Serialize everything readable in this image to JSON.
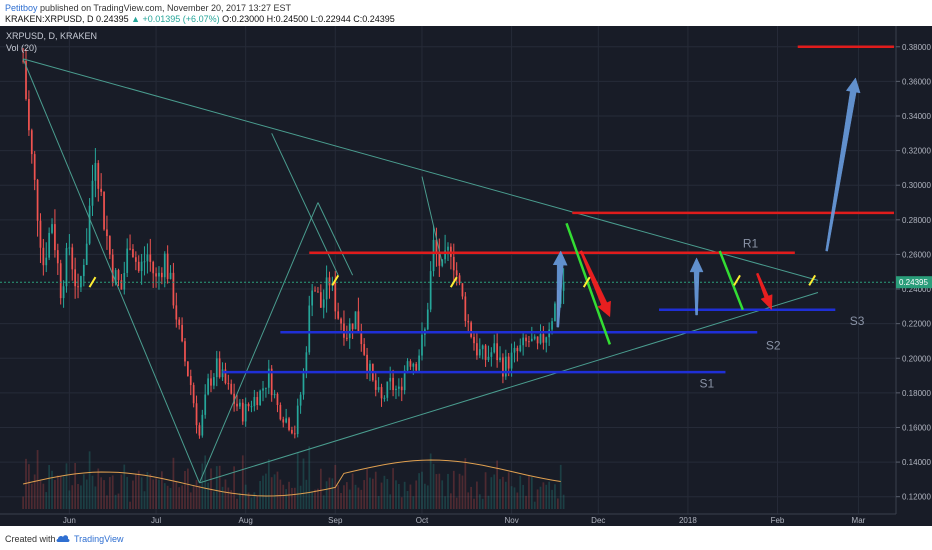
{
  "header": {
    "user": "Petitboy",
    "published_text": "published on TradingView.com, November 20, 2017 13:27 EST",
    "symbol": "KRAKEN:XRPUSD, D",
    "price": "0.24395",
    "change": "▲ +0.01395 (+6.07%)",
    "ohlc": "O:0.23000 H:0.24500 L:0.22944 C:0.24395"
  },
  "legend": {
    "symbol_line": "XRPUSD, D, KRAKEN",
    "vol_line": "Vol (20)"
  },
  "footer": {
    "created_with": "Created with",
    "brand": "TradingView"
  },
  "colors": {
    "background": "#181c27",
    "grid": "#262b38",
    "up_candle": "#26a69a",
    "down_candle": "#ef5350",
    "resistance": "#e01c1c",
    "support": "#1f2fd6",
    "triangle": "#4a9d8f",
    "current_price": "#2a9d7a",
    "arrow_blue": "#6a9de0",
    "arrow_red": "#ff2020",
    "arrow_green": "#33dd33",
    "tick_yellow": "#ffee33"
  },
  "chart_data": {
    "type": "candlestick",
    "title": "XRPUSD, D, KRAKEN",
    "x_ticks": [
      "Jun",
      "Jul",
      "Aug",
      "Sep",
      "Oct",
      "Nov",
      "Dec",
      "2018",
      "Feb",
      "Mar"
    ],
    "y_ticks": [
      "0.12000",
      "0.14000",
      "0.16000",
      "0.18000",
      "0.20000",
      "0.22000",
      "0.24000",
      "0.26000",
      "0.28000",
      "0.30000",
      "0.32000",
      "0.34000",
      "0.36000",
      "0.38000"
    ],
    "ylim": [
      0.11,
      0.392
    ],
    "current_price": 0.24395,
    "current_price_label": "0.24395",
    "price_path": [
      [
        "2017-05-16",
        0.372
      ],
      [
        "2017-05-18",
        0.33
      ],
      [
        "2017-05-20",
        0.3
      ],
      [
        "2017-05-23",
        0.255
      ],
      [
        "2017-05-26",
        0.28
      ],
      [
        "2017-05-29",
        0.24
      ],
      [
        "2017-06-01",
        0.265
      ],
      [
        "2017-06-04",
        0.235
      ],
      [
        "2017-06-07",
        0.27
      ],
      [
        "2017-06-10",
        0.32
      ],
      [
        "2017-06-13",
        0.28
      ],
      [
        "2017-06-16",
        0.25
      ],
      [
        "2017-06-19",
        0.24
      ],
      [
        "2017-06-22",
        0.27
      ],
      [
        "2017-06-25",
        0.25
      ],
      [
        "2017-06-28",
        0.26
      ],
      [
        "2017-07-01",
        0.245
      ],
      [
        "2017-07-04",
        0.258
      ],
      [
        "2017-07-07",
        0.235
      ],
      [
        "2017-07-10",
        0.205
      ],
      [
        "2017-07-13",
        0.185
      ],
      [
        "2017-07-16",
        0.155
      ],
      [
        "2017-07-19",
        0.185
      ],
      [
        "2017-07-22",
        0.195
      ],
      [
        "2017-07-25",
        0.185
      ],
      [
        "2017-07-28",
        0.175
      ],
      [
        "2017-07-31",
        0.168
      ],
      [
        "2017-08-03",
        0.175
      ],
      [
        "2017-08-06",
        0.18
      ],
      [
        "2017-08-09",
        0.19
      ],
      [
        "2017-08-12",
        0.172
      ],
      [
        "2017-08-15",
        0.165
      ],
      [
        "2017-08-18",
        0.158
      ],
      [
        "2017-08-21",
        0.19
      ],
      [
        "2017-08-24",
        0.245
      ],
      [
        "2017-08-27",
        0.23
      ],
      [
        "2017-08-30",
        0.245
      ],
      [
        "2017-09-02",
        0.225
      ],
      [
        "2017-09-05",
        0.215
      ],
      [
        "2017-09-08",
        0.225
      ],
      [
        "2017-09-11",
        0.205
      ],
      [
        "2017-09-14",
        0.185
      ],
      [
        "2017-09-17",
        0.175
      ],
      [
        "2017-09-20",
        0.185
      ],
      [
        "2017-09-23",
        0.18
      ],
      [
        "2017-09-26",
        0.2
      ],
      [
        "2017-09-29",
        0.198
      ],
      [
        "2017-10-02",
        0.215
      ],
      [
        "2017-10-05",
        0.265
      ],
      [
        "2017-10-08",
        0.25
      ],
      [
        "2017-10-11",
        0.265
      ],
      [
        "2017-10-14",
        0.24
      ],
      [
        "2017-10-17",
        0.22
      ],
      [
        "2017-10-20",
        0.205
      ],
      [
        "2017-10-23",
        0.2
      ],
      [
        "2017-10-26",
        0.205
      ],
      [
        "2017-10-29",
        0.195
      ],
      [
        "2017-11-01",
        0.2
      ],
      [
        "2017-11-04",
        0.205
      ],
      [
        "2017-11-07",
        0.21
      ],
      [
        "2017-11-10",
        0.205
      ],
      [
        "2017-11-13",
        0.215
      ],
      [
        "2017-11-16",
        0.23
      ],
      [
        "2017-11-19",
        0.244
      ]
    ],
    "resistance": [
      {
        "label": "R1",
        "y": 0.261
      },
      {
        "label": "",
        "y": 0.284
      },
      {
        "label": "",
        "y": 0.38
      }
    ],
    "support": [
      {
        "label": "S1",
        "y": 0.192
      },
      {
        "label": "S2",
        "y": 0.215
      },
      {
        "label": "S3",
        "y": 0.228
      }
    ],
    "triangle_upper": [
      [
        "2017-05-16",
        0.373
      ],
      [
        "2018-02-15",
        0.245
      ]
    ],
    "triangle_lower": [
      [
        "2017-07-16",
        0.128
      ],
      [
        "2018-02-15",
        0.238
      ]
    ],
    "volume_label": "Vol (20)"
  }
}
